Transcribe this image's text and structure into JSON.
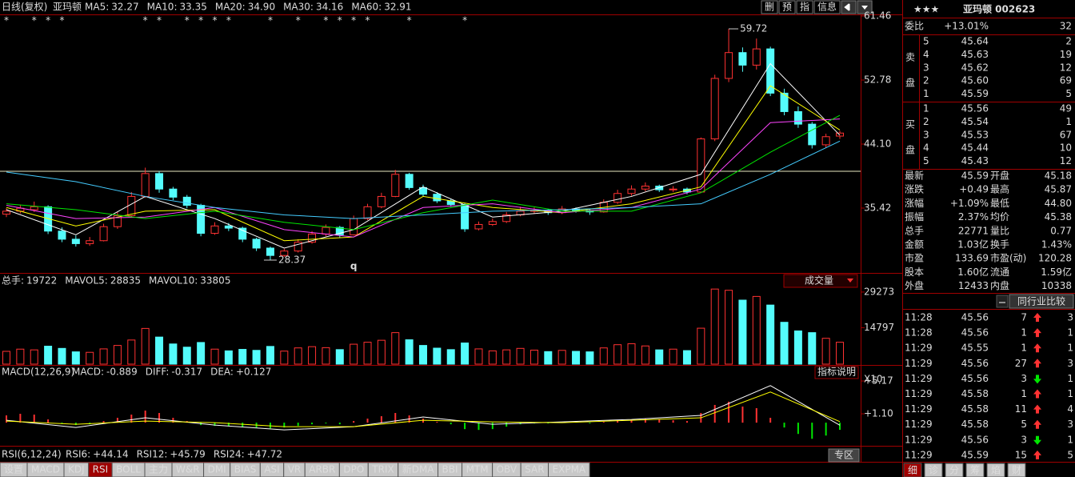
{
  "toolbar": {
    "period": "日线(复权)",
    "name": "亚玛顿",
    "readouts": [
      {
        "label": "MA5:",
        "value": "32.27",
        "color": "#ffffff"
      },
      {
        "label": "MA10:",
        "value": "33.35",
        "color": "#ffff00"
      },
      {
        "label": "MA20:",
        "value": "34.90",
        "color": "#ff44ff"
      },
      {
        "label": "MA30:",
        "value": "34.16",
        "color": "#00e600"
      },
      {
        "label": "MA60:",
        "value": "32.91",
        "color": "#44ccff"
      }
    ],
    "buttons": [
      "删",
      "预",
      "指",
      "信息"
    ]
  },
  "price_chart": {
    "type": "candlestick",
    "ylim": [
      26.74,
      62.11
    ],
    "yticks": [
      35.42,
      {
        "value": 44.1,
        "label": "44.10"
      },
      52.78,
      61.46
    ],
    "up_color": "#ff3232",
    "down_color": "#54fcfc",
    "candles": [
      [
        34.6,
        35.4,
        34.2,
        35.0
      ],
      [
        35.0,
        35.9,
        34.7,
        35.4
      ],
      [
        35.2,
        36.3,
        34.9,
        35.6
      ],
      [
        35.6,
        35.8,
        31.9,
        32.3
      ],
      [
        32.3,
        32.8,
        30.8,
        31.2
      ],
      [
        31.2,
        31.7,
        30.2,
        30.6
      ],
      [
        30.6,
        31.5,
        30.3,
        31.0
      ],
      [
        31.0,
        33.3,
        30.9,
        32.9
      ],
      [
        32.9,
        34.9,
        32.6,
        34.4
      ],
      [
        34.4,
        37.6,
        34.2,
        37.0
      ],
      [
        37.0,
        40.9,
        36.8,
        40.1
      ],
      [
        40.1,
        40.4,
        37.5,
        38.0
      ],
      [
        38.0,
        38.3,
        36.5,
        36.9
      ],
      [
        36.9,
        37.2,
        35.4,
        35.8
      ],
      [
        35.8,
        36.0,
        31.6,
        32.0
      ],
      [
        32.0,
        33.5,
        31.8,
        33.0
      ],
      [
        33.0,
        33.4,
        32.3,
        32.7
      ],
      [
        32.7,
        32.9,
        30.8,
        31.2
      ],
      [
        31.2,
        31.4,
        29.6,
        30.0
      ],
      [
        30.0,
        30.2,
        28.37,
        29.0
      ],
      [
        29.0,
        29.9,
        28.8,
        29.6
      ],
      [
        29.6,
        31.2,
        29.4,
        30.8
      ],
      [
        30.8,
        32.3,
        30.6,
        31.9
      ],
      [
        31.9,
        33.2,
        31.6,
        32.8
      ],
      [
        32.8,
        33.0,
        31.4,
        31.8
      ],
      [
        31.8,
        34.4,
        31.7,
        34.0
      ],
      [
        34.0,
        36.0,
        33.8,
        35.6
      ],
      [
        35.6,
        37.5,
        35.4,
        37.0
      ],
      [
        37.0,
        40.6,
        36.9,
        40.0
      ],
      [
        40.0,
        40.2,
        37.9,
        38.2
      ],
      [
        38.2,
        38.6,
        37.0,
        37.3
      ],
      [
        37.3,
        37.6,
        36.1,
        36.4
      ],
      [
        36.4,
        36.7,
        35.6,
        35.9
      ],
      [
        35.9,
        36.1,
        32.2,
        32.6
      ],
      [
        32.6,
        33.6,
        32.4,
        33.2
      ],
      [
        33.2,
        34.0,
        33.0,
        33.6
      ],
      [
        33.6,
        34.9,
        33.4,
        34.5
      ],
      [
        34.5,
        35.6,
        34.3,
        35.0
      ],
      [
        35.0,
        35.5,
        34.7,
        35.1
      ],
      [
        35.1,
        35.3,
        34.5,
        34.8
      ],
      [
        34.8,
        35.7,
        34.6,
        35.3
      ],
      [
        35.3,
        35.5,
        34.8,
        35.1
      ],
      [
        35.1,
        35.3,
        34.5,
        34.9
      ],
      [
        34.9,
        36.6,
        34.8,
        36.2
      ],
      [
        36.2,
        37.9,
        36.0,
        37.4
      ],
      [
        37.4,
        38.5,
        37.1,
        38.0
      ],
      [
        38.0,
        38.9,
        37.7,
        38.4
      ],
      [
        38.4,
        38.6,
        37.6,
        37.9
      ],
      [
        37.9,
        38.4,
        37.6,
        38.0
      ],
      [
        38.0,
        38.2,
        37.3,
        37.6
      ],
      [
        37.6,
        45.0,
        37.5,
        44.8
      ],
      [
        44.8,
        53.5,
        44.5,
        53.0
      ],
      [
        53.0,
        59.72,
        52.5,
        56.5
      ],
      [
        56.5,
        57.2,
        53.9,
        54.8
      ],
      [
        54.8,
        58.4,
        54.2,
        57.0
      ],
      [
        57.0,
        57.3,
        50.6,
        51.0
      ],
      [
        51.0,
        51.6,
        48.0,
        48.5
      ],
      [
        48.5,
        49.2,
        46.3,
        46.8
      ],
      [
        46.8,
        47.1,
        43.5,
        44.0
      ],
      [
        44.0,
        45.5,
        43.6,
        45.1
      ],
      [
        45.18,
        45.87,
        44.8,
        45.59
      ]
    ],
    "ma_x": [
      0,
      5,
      10,
      15,
      20,
      25,
      30,
      35,
      40,
      45,
      50,
      55,
      60
    ],
    "ma_series": [
      {
        "name": "MA5",
        "color": "#ffffff",
        "values": [
          35.2,
          31.8,
          37.0,
          34.0,
          30.0,
          32.5,
          38.3,
          34.2,
          35.0,
          37.0,
          40.0,
          55.0,
          45.3
        ]
      },
      {
        "name": "MA10",
        "color": "#ffff00",
        "values": [
          35.5,
          33.0,
          35.0,
          35.2,
          31.0,
          31.5,
          37.0,
          35.5,
          34.8,
          36.0,
          38.3,
          52.0,
          46.0
        ]
      },
      {
        "name": "MA20",
        "color": "#ff44ff",
        "values": [
          35.8,
          34.0,
          34.2,
          35.5,
          32.5,
          31.5,
          35.5,
          36.0,
          34.8,
          35.5,
          38.0,
          47.0,
          47.5
        ]
      },
      {
        "name": "MA30",
        "color": "#00e600",
        "values": [
          36.0,
          35.2,
          34.0,
          35.0,
          33.5,
          32.5,
          34.8,
          36.5,
          35.0,
          35.0,
          37.5,
          43.0,
          48.0
        ]
      },
      {
        "name": "MA60",
        "color": "#44ccff",
        "values": [
          40.3,
          39.0,
          37.0,
          35.5,
          34.5,
          34.0,
          34.5,
          35.0,
          35.2,
          35.5,
          36.0,
          40.0,
          44.5
        ]
      }
    ],
    "reference_line": 40.41,
    "max_label": 59.72,
    "max_index": 52,
    "min_label": 28.37,
    "min_index": 19,
    "marker": "q",
    "marker_index": 25,
    "star": "*",
    "star_indices": [
      0,
      2,
      3,
      4,
      10,
      11,
      13,
      14,
      15,
      16,
      19,
      21,
      23,
      24,
      25,
      26,
      29,
      33
    ]
  },
  "volume_chart": {
    "type": "bar",
    "ylim": [
      0,
      32500
    ],
    "yticks": [
      14797,
      29273
    ],
    "unit_label": "X10",
    "dropdown": "成交量",
    "readouts": [
      {
        "label": "总手:",
        "value": "19722",
        "color": "#ff3232"
      },
      {
        "label": "MAVOL5:",
        "value": "28835",
        "color": "#ffff00"
      },
      {
        "label": "MAVOL10:",
        "value": "33805",
        "color": "#ffffff"
      }
    ],
    "values": [
      5200,
      6100,
      5800,
      7300,
      6400,
      5000,
      4800,
      6200,
      7600,
      9800,
      14500,
      11000,
      8200,
      6900,
      8800,
      6100,
      5400,
      6000,
      5600,
      7200,
      5300,
      6600,
      7100,
      6700,
      5900,
      8100,
      8900,
      9700,
      12800,
      9900,
      7600,
      6500,
      5900,
      8600,
      6200,
      5400,
      5800,
      6400,
      5700,
      5100,
      5600,
      5200,
      5000,
      6600,
      7900,
      8300,
      7400,
      5800,
      6100,
      5500,
      14600,
      30500,
      30000,
      26000,
      27500,
      24000,
      17000,
      13500,
      12800,
      10500,
      8900
    ]
  },
  "macd_chart": {
    "type": "macd",
    "title": "MACD(12,26,9)",
    "help": "指标说明",
    "ylim": [
      -2.67,
      6.76
    ],
    "yticks": [
      {
        "value": 1.1,
        "label": "+1.10"
      },
      {
        "value": 5.17,
        "label": "+5.17"
      }
    ],
    "readouts": [
      {
        "label": "MACD:",
        "value": "-0.889",
        "color": "#ffffff"
      },
      {
        "label": "DIFF:",
        "value": "-0.317",
        "color": "#ffffff"
      },
      {
        "label": "DEA:",
        "value": "+0.127",
        "color": "#ffff00"
      }
    ],
    "histogram": [
      0.9,
      1.1,
      1.0,
      0.4,
      -0.1,
      -0.3,
      -0.2,
      0.2,
      0.6,
      1.0,
      1.5,
      1.2,
      0.6,
      0.2,
      -0.3,
      -0.4,
      -0.4,
      -0.5,
      -0.6,
      -0.7,
      -0.6,
      -0.4,
      -0.2,
      -0.1,
      -0.2,
      0.2,
      0.5,
      0.8,
      1.2,
      0.9,
      0.5,
      0.1,
      -0.2,
      -0.8,
      -0.9,
      -0.8,
      -0.5,
      -0.2,
      -0.1,
      -0.1,
      0.0,
      0.0,
      -0.1,
      0.1,
      0.3,
      0.4,
      0.5,
      0.4,
      0.3,
      0.2,
      1.2,
      2.2,
      2.6,
      2.0,
      1.8,
      0.6,
      -0.6,
      -1.4,
      -2.0,
      -1.6,
      -0.889
    ],
    "x": [
      0,
      5,
      10,
      15,
      20,
      25,
      30,
      35,
      40,
      45,
      50,
      55,
      60
    ],
    "series": [
      {
        "name": "DIFF",
        "color": "#ffffff",
        "values": [
          0.3,
          -0.6,
          0.6,
          -0.3,
          -0.9,
          -0.5,
          0.7,
          -0.2,
          0.1,
          0.4,
          0.9,
          4.6,
          -0.317
        ]
      },
      {
        "name": "DEA",
        "color": "#ffff00",
        "values": [
          0.2,
          -0.2,
          0.2,
          0.0,
          -0.5,
          -0.5,
          0.3,
          0.1,
          0.0,
          0.3,
          0.6,
          3.8,
          0.127
        ]
      }
    ]
  },
  "rsi_header": {
    "title": "RSI(6,12,24)",
    "readouts": [
      {
        "label": "RSI6:",
        "value": "+44.14",
        "color": "#ffffff"
      },
      {
        "label": "RSI12:",
        "value": "+45.79",
        "color": "#00e600"
      },
      {
        "label": "RSI24:",
        "value": "+47.72",
        "color": "#5577ff"
      }
    ]
  },
  "tabs": {
    "items": [
      "设置",
      "MACD",
      "KDJ",
      "RSI",
      "BOLL",
      "主力",
      "W&R",
      "DMI",
      "BIAS",
      "ASI",
      "VR",
      "ARBR",
      "DPO",
      "TRIX",
      "新DMA",
      "BBI",
      "MTM",
      "OBV",
      "SAR",
      "EXPMA"
    ],
    "active": 3,
    "zone": "专区"
  },
  "quote": {
    "stars": "★★★",
    "title": "亚玛顿 002623",
    "ratio_label": "委比",
    "ratio": "+13.01%",
    "ratio_diff": "32",
    "sell_label": [
      "卖",
      "盘"
    ],
    "buy_label": [
      "买",
      "盘"
    ],
    "sell": [
      [
        "5",
        "45.64",
        "2"
      ],
      [
        "4",
        "45.63",
        "19"
      ],
      [
        "3",
        "45.62",
        "12"
      ],
      [
        "2",
        "45.60",
        "69"
      ],
      [
        "1",
        "45.59",
        "5"
      ]
    ],
    "buy": [
      [
        "1",
        "45.56",
        "49"
      ],
      [
        "2",
        "45.54",
        "1"
      ],
      [
        "3",
        "45.53",
        "67"
      ],
      [
        "4",
        "45.44",
        "10"
      ],
      [
        "5",
        "45.43",
        "12"
      ]
    ],
    "stats": [
      [
        {
          "label": "最新",
          "value": "45.59",
          "color": "#ff3232"
        },
        {
          "label": "开盘",
          "value": "45.18",
          "color": "#ff3232"
        }
      ],
      [
        {
          "label": "涨跌",
          "value": "+0.49",
          "color": "#ff3232"
        },
        {
          "label": "最高",
          "value": "45.87",
          "color": "#ff3232"
        }
      ],
      [
        {
          "label": "涨幅",
          "value": "+1.09%",
          "color": "#ff3232"
        },
        {
          "label": "最低",
          "value": "44.80",
          "color": "#00e600"
        }
      ],
      [
        {
          "label": "振幅",
          "value": "2.37%",
          "color": "#54fcfc"
        },
        {
          "label": "均价",
          "value": "45.38",
          "color": "#ff3232"
        }
      ],
      [
        {
          "label": "总手",
          "value": "22771",
          "color": "#54fcfc"
        },
        {
          "label": "量比",
          "value": "0.77",
          "color": "#54fcfc"
        }
      ],
      [
        {
          "label": "金额",
          "value": "1.03亿",
          "color": "#54fcfc"
        },
        {
          "label": "换手",
          "value": "1.43%",
          "color": "#54fcfc"
        }
      ],
      [
        {
          "label": "市盈",
          "value": "133.69",
          "color": "#ffffff"
        },
        {
          "label": "市盈(动)",
          "value": "120.28",
          "color": "#ffffff"
        }
      ],
      [
        {
          "label": "股本",
          "value": "1.60亿",
          "color": "#54fcfc"
        },
        {
          "label": "流通",
          "value": "1.59亿",
          "color": "#54fcfc"
        }
      ],
      [
        {
          "label": "外盘",
          "value": "12433",
          "color": "#ff3232"
        },
        {
          "label": "内盘",
          "value": "10338",
          "color": "#00e600"
        }
      ]
    ],
    "peer_tab": "同行业比较",
    "ticks": [
      [
        "11:28",
        "45.56",
        "7",
        "up",
        "3"
      ],
      [
        "11:28",
        "45.56",
        "1",
        "up",
        "1"
      ],
      [
        "11:29",
        "45.55",
        "1",
        "up",
        "1"
      ],
      [
        "11:29",
        "45.56",
        "27",
        "up",
        "3"
      ],
      [
        "11:29",
        "45.56",
        "3",
        "down",
        "1"
      ],
      [
        "11:29",
        "45.58",
        "1",
        "up",
        "1"
      ],
      [
        "11:29",
        "45.58",
        "11",
        "up",
        "4"
      ],
      [
        "11:29",
        "45.58",
        "5",
        "up",
        "3"
      ],
      [
        "11:29",
        "45.56",
        "3",
        "down",
        "1"
      ],
      [
        "11:29",
        "45.59",
        "15",
        "up",
        "5"
      ]
    ],
    "bottom_tabs": [
      "细",
      "诊",
      "分",
      "筹",
      "焰",
      "财"
    ]
  }
}
